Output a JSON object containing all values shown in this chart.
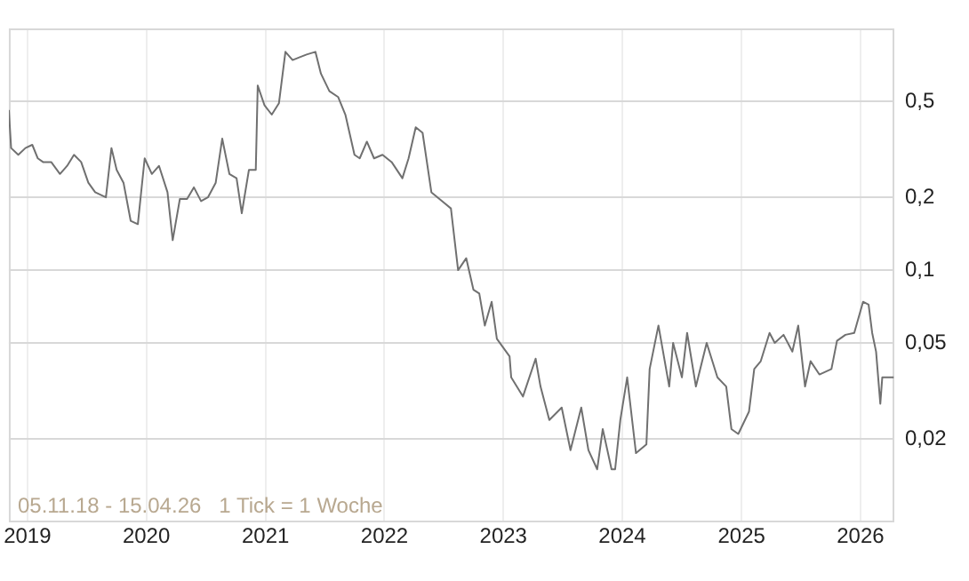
{
  "chart_data": {
    "type": "line",
    "log": true,
    "grid": true,
    "legend": false,
    "marker": "none",
    "line_style": "solid",
    "xlim": [
      "2018-11-05",
      "2026-04-15"
    ],
    "xticks": [
      "2019",
      "2020",
      "2021",
      "2022",
      "2023",
      "2024",
      "2025",
      "2026"
    ],
    "ylim": [
      0.0092,
      1
    ],
    "yticks": [
      {
        "value": 0.02,
        "label": "0,02"
      },
      {
        "value": 0.05,
        "label": "0,05"
      },
      {
        "value": 0.1,
        "label": "0,1"
      },
      {
        "value": 0.2,
        "label": "0,2"
      },
      {
        "value": 0.5,
        "label": "0,5"
      }
    ],
    "annotations": [
      "05.11.18 - 15.04.26   1 Tick = 1 Woche"
    ],
    "series": [
      {
        "color": "#707070",
        "x": [
          "2018-11-05",
          "2018-11-12",
          "2018-12-04",
          "2018-12-26",
          "2019-01-16",
          "2019-02-02",
          "2019-02-18",
          "2019-03-15",
          "2019-04-11",
          "2019-05-03",
          "2019-05-24",
          "2019-06-15",
          "2019-07-07",
          "2019-07-28",
          "2019-08-30",
          "2019-09-16",
          "2019-10-02",
          "2019-10-23",
          "2019-11-14",
          "2019-12-06",
          "2019-12-27",
          "2020-01-18",
          "2020-02-09",
          "2020-03-06",
          "2020-03-22",
          "2020-04-13",
          "2020-05-05",
          "2020-05-26",
          "2020-06-17",
          "2020-07-08",
          "2020-08-01",
          "2020-08-21",
          "2020-09-12",
          "2020-10-04",
          "2020-10-20",
          "2020-11-11",
          "2020-12-02",
          "2020-12-08",
          "2020-12-29",
          "2021-01-20",
          "2021-02-11",
          "2021-03-03",
          "2021-03-25",
          "2021-04-16",
          "2021-05-07",
          "2021-06-03",
          "2021-06-20",
          "2021-07-16",
          "2021-08-12",
          "2021-09-03",
          "2021-10-01",
          "2021-10-17",
          "2021-11-08",
          "2021-11-30",
          "2021-12-26",
          "2022-01-23",
          "2022-02-25",
          "2022-03-16",
          "2022-04-07",
          "2022-04-28",
          "2022-05-25",
          "2022-07-03",
          "2022-07-24",
          "2022-08-15",
          "2022-09-09",
          "2022-10-01",
          "2022-10-19",
          "2022-11-05",
          "2022-11-26",
          "2022-12-12",
          "2023-01-20",
          "2023-01-25",
          "2023-03-02",
          "2023-04-10",
          "2023-04-25",
          "2023-05-22",
          "2023-06-29",
          "2023-07-26",
          "2023-08-28",
          "2023-09-19",
          "2023-10-16",
          "2023-11-02",
          "2023-11-29",
          "2023-12-10",
          "2023-12-26",
          "2024-01-16",
          "2024-02-12",
          "2024-03-15",
          "2024-03-25",
          "2024-04-21",
          "2024-05-24",
          "2024-06-05",
          "2024-07-02",
          "2024-07-18",
          "2024-08-14",
          "2024-09-16",
          "2024-10-19",
          "2024-11-15",
          "2024-12-01",
          "2024-12-22",
          "2025-01-24",
          "2025-02-09",
          "2025-03-01",
          "2025-03-28",
          "2025-04-13",
          "2025-05-10",
          "2025-06-06",
          "2025-06-24",
          "2025-07-15",
          "2025-08-01",
          "2025-08-28",
          "2025-10-04",
          "2025-10-21",
          "2025-11-16",
          "2025-12-13",
          "2026-01-09",
          "2026-01-26",
          "2026-02-06",
          "2026-02-18",
          "2026-03-03",
          "2026-03-09",
          "2026-04-13"
        ],
        "values": [
          0.46,
          0.32,
          0.3,
          0.32,
          0.33,
          0.29,
          0.28,
          0.28,
          0.25,
          0.27,
          0.3,
          0.28,
          0.23,
          0.21,
          0.2,
          0.32,
          0.26,
          0.23,
          0.16,
          0.155,
          0.29,
          0.25,
          0.27,
          0.21,
          0.133,
          0.197,
          0.197,
          0.22,
          0.193,
          0.2,
          0.23,
          0.35,
          0.25,
          0.24,
          0.172,
          0.26,
          0.26,
          0.58,
          0.48,
          0.44,
          0.49,
          0.8,
          0.74,
          0.76,
          0.78,
          0.8,
          0.65,
          0.55,
          0.52,
          0.44,
          0.3,
          0.29,
          0.34,
          0.29,
          0.3,
          0.28,
          0.24,
          0.29,
          0.39,
          0.37,
          0.21,
          0.19,
          0.18,
          0.1,
          0.112,
          0.083,
          0.08,
          0.059,
          0.074,
          0.052,
          0.044,
          0.036,
          0.03,
          0.043,
          0.033,
          0.024,
          0.027,
          0.018,
          0.027,
          0.018,
          0.015,
          0.022,
          0.015,
          0.015,
          0.024,
          0.036,
          0.0175,
          0.019,
          0.039,
          0.059,
          0.033,
          0.05,
          0.036,
          0.055,
          0.033,
          0.05,
          0.036,
          0.033,
          0.022,
          0.021,
          0.026,
          0.039,
          0.042,
          0.055,
          0.05,
          0.054,
          0.046,
          0.059,
          0.033,
          0.042,
          0.037,
          0.039,
          0.051,
          0.054,
          0.055,
          0.074,
          0.072,
          0.055,
          0.046,
          0.028,
          0.036,
          0.036
        ]
      }
    ]
  }
}
